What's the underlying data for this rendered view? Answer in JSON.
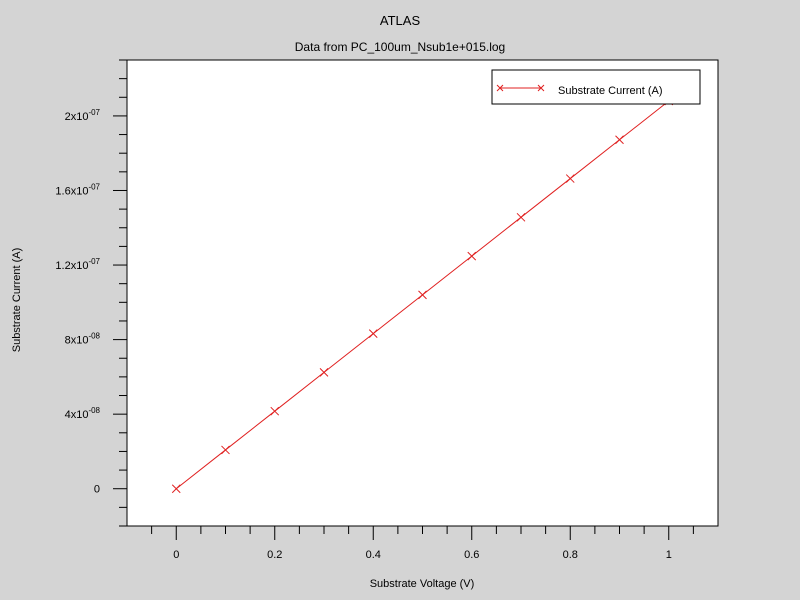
{
  "chart_data": {
    "type": "line",
    "title": "ATLAS",
    "subtitle": "Data from PC_100um_Nsub1e+015.log",
    "xlabel": "Substrate Voltage (V)",
    "ylabel": "Substrate Current (A)",
    "xlim": [
      -0.1,
      1.1
    ],
    "ylim": [
      -2e-08,
      2.3e-07
    ],
    "xticks": [
      0,
      0.2,
      0.4,
      0.6,
      0.8,
      1.0
    ],
    "xtick_labels": [
      "0",
      "0.2",
      "0.4",
      "0.6",
      "0.8",
      "1"
    ],
    "yticks": [
      {
        "value": 0,
        "mantissa": "0",
        "exp": ""
      },
      {
        "value": 4e-08,
        "mantissa": "4x10",
        "exp": "-08"
      },
      {
        "value": 8e-08,
        "mantissa": "8x10",
        "exp": "-08"
      },
      {
        "value": 1.2e-07,
        "mantissa": "1.2x10",
        "exp": "-07"
      },
      {
        "value": 1.6e-07,
        "mantissa": "1.6x10",
        "exp": "-07"
      },
      {
        "value": 2e-07,
        "mantissa": "2x10",
        "exp": "-07"
      }
    ],
    "legend_position": "top-right",
    "grid": false,
    "series": [
      {
        "name": "Substrate Current (A)",
        "color": "#e02020",
        "marker": "x",
        "x": [
          0,
          0.1,
          0.2,
          0.3,
          0.4,
          0.5,
          0.6,
          0.7,
          0.8,
          0.9,
          1.0
        ],
        "y": [
          0,
          2.08e-08,
          4.16e-08,
          6.24e-08,
          8.32e-08,
          1.04e-07,
          1.248e-07,
          1.456e-07,
          1.664e-07,
          1.872e-07,
          2.08e-07
        ]
      }
    ]
  }
}
